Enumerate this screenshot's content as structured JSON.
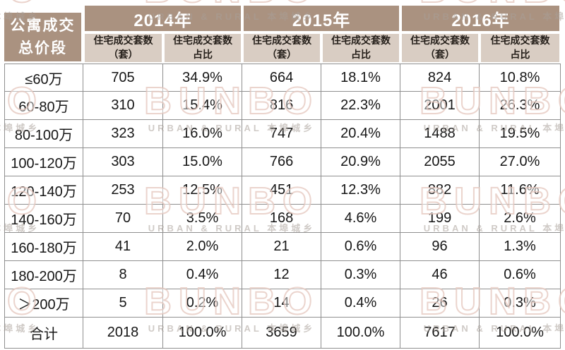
{
  "watermark": {
    "brand": "BUNBO",
    "subtext": "URBAN & RURAL 本埠城乡"
  },
  "colors": {
    "header_bg": "#aa9280",
    "subheader_bg": "#d9cdc3",
    "header_text": "#ffffff",
    "subheader_text": "#241e19",
    "body_text": "#161616",
    "grid_line": "#8f8f8f",
    "watermark_pink": "#e4c5bc",
    "watermark_gray": "#a89e98"
  },
  "table": {
    "corner_line1": "公寓成交",
    "corner_line2": "总价段",
    "year_headers": [
      "2014年",
      "2015年",
      "2016年"
    ],
    "sub_headers": {
      "count_line1": "住宅成交套数",
      "count_line2": "（套）",
      "share_line1": "住宅成交套数",
      "share_line2": "占比"
    },
    "rows": [
      {
        "label": "≤60万",
        "values": [
          "705",
          "34.9%",
          "664",
          "18.1%",
          "824",
          "10.8%"
        ]
      },
      {
        "label": "60-80万",
        "values": [
          "310",
          "15.4%",
          "816",
          "22.3%",
          "2001",
          "26.3%"
        ]
      },
      {
        "label": "80-100万",
        "values": [
          "323",
          "16.0%",
          "747",
          "20.4%",
          "1488",
          "19.5%"
        ]
      },
      {
        "label": "100-120万",
        "values": [
          "303",
          "15.0%",
          "766",
          "20.9%",
          "2055",
          "27.0%"
        ]
      },
      {
        "label": "120-140万",
        "values": [
          "253",
          "12.5%",
          "451",
          "12.3%",
          "882",
          "11.6%"
        ]
      },
      {
        "label": "140-160万",
        "values": [
          "70",
          "3.5%",
          "168",
          "4.6%",
          "199",
          "2.6%"
        ]
      },
      {
        "label": "160-180万",
        "values": [
          "41",
          "2.0%",
          "21",
          "0.6%",
          "96",
          "1.3%"
        ]
      },
      {
        "label": "180-200万",
        "values": [
          "8",
          "0.4%",
          "12",
          "0.3%",
          "46",
          "0.6%"
        ]
      },
      {
        "label": "＞200万",
        "values": [
          "5",
          "0.2%",
          "14",
          "0.4%",
          "26",
          "0.3%"
        ]
      }
    ],
    "total_row": {
      "label": "合计",
      "values": [
        "2018",
        "100.0%",
        "3659",
        "100.0%",
        "7617",
        "100.0%"
      ]
    }
  },
  "chart_data": {
    "type": "table",
    "title": "公寓成交总价段：住宅成交套数及占比（2014年-2016年）",
    "categories": [
      "≤60万",
      "60-80万",
      "80-100万",
      "100-120万",
      "120-140万",
      "140-160万",
      "160-180万",
      "180-200万",
      "＞200万",
      "合计"
    ],
    "series": [
      {
        "name": "2014年 住宅成交套数（套）",
        "values": [
          705,
          310,
          323,
          303,
          253,
          70,
          41,
          8,
          5,
          2018
        ]
      },
      {
        "name": "2014年 住宅成交套数占比",
        "values": [
          "34.9%",
          "15.4%",
          "16.0%",
          "15.0%",
          "12.5%",
          "3.5%",
          "2.0%",
          "0.4%",
          "0.2%",
          "100.0%"
        ]
      },
      {
        "name": "2015年 住宅成交套数（套）",
        "values": [
          664,
          816,
          747,
          766,
          451,
          168,
          21,
          12,
          14,
          3659
        ]
      },
      {
        "name": "2015年 住宅成交套数占比",
        "values": [
          "18.1%",
          "22.3%",
          "20.4%",
          "20.9%",
          "12.3%",
          "4.6%",
          "0.6%",
          "0.3%",
          "0.4%",
          "100.0%"
        ]
      },
      {
        "name": "2016年 住宅成交套数（套）",
        "values": [
          824,
          2001,
          1488,
          2055,
          882,
          199,
          96,
          46,
          26,
          7617
        ]
      },
      {
        "name": "2016年 住宅成交套数占比",
        "values": [
          "10.8%",
          "26.3%",
          "19.5%",
          "27.0%",
          "11.6%",
          "2.6%",
          "1.3%",
          "0.6%",
          "0.3%",
          "100.0%"
        ]
      }
    ],
    "layout": {
      "grid": true,
      "header_rows": 2,
      "year_colspan": 2
    }
  }
}
